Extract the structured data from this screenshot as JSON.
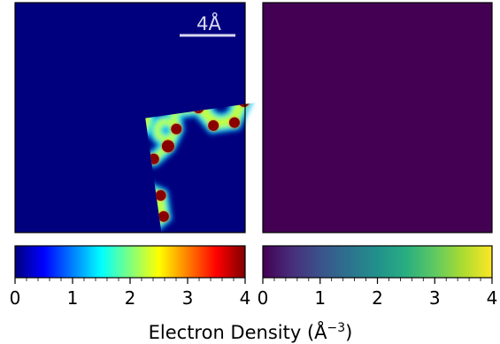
{
  "figure": {
    "scale_bar_label": "4Å",
    "colorbar_label_main": "Electron Density (Å",
    "colorbar_label_sup": "−3",
    "colorbar_label_close": ")"
  },
  "panels": [
    {
      "name": "jet-panel",
      "colormap": "jet",
      "background": "#00007f"
    },
    {
      "name": "viridis-panel",
      "colormap": "viridis",
      "background": "#440154"
    }
  ],
  "colorbars": [
    {
      "colormap": "jet",
      "ticks": [
        "0",
        "1",
        "2",
        "3",
        "4"
      ],
      "stops": [
        "#00007f",
        "#0000ff",
        "#007fff",
        "#00ffff",
        "#7fff7f",
        "#ffff00",
        "#ff7f00",
        "#ff0000",
        "#7f0000"
      ]
    },
    {
      "colormap": "viridis",
      "ticks": [
        "0",
        "1",
        "2",
        "3",
        "4"
      ],
      "stops": [
        "#440154",
        "#472d7b",
        "#3b528b",
        "#2c728e",
        "#21918c",
        "#28ae80",
        "#5ec962",
        "#addc30",
        "#fde725"
      ]
    }
  ],
  "chart_data": {
    "type": "heatmap",
    "colorbar_range": [
      0,
      4
    ],
    "colorbar_ticks": [
      0,
      1,
      2,
      3,
      4
    ],
    "xlabel": "Electron Density (Å−3)"
  }
}
